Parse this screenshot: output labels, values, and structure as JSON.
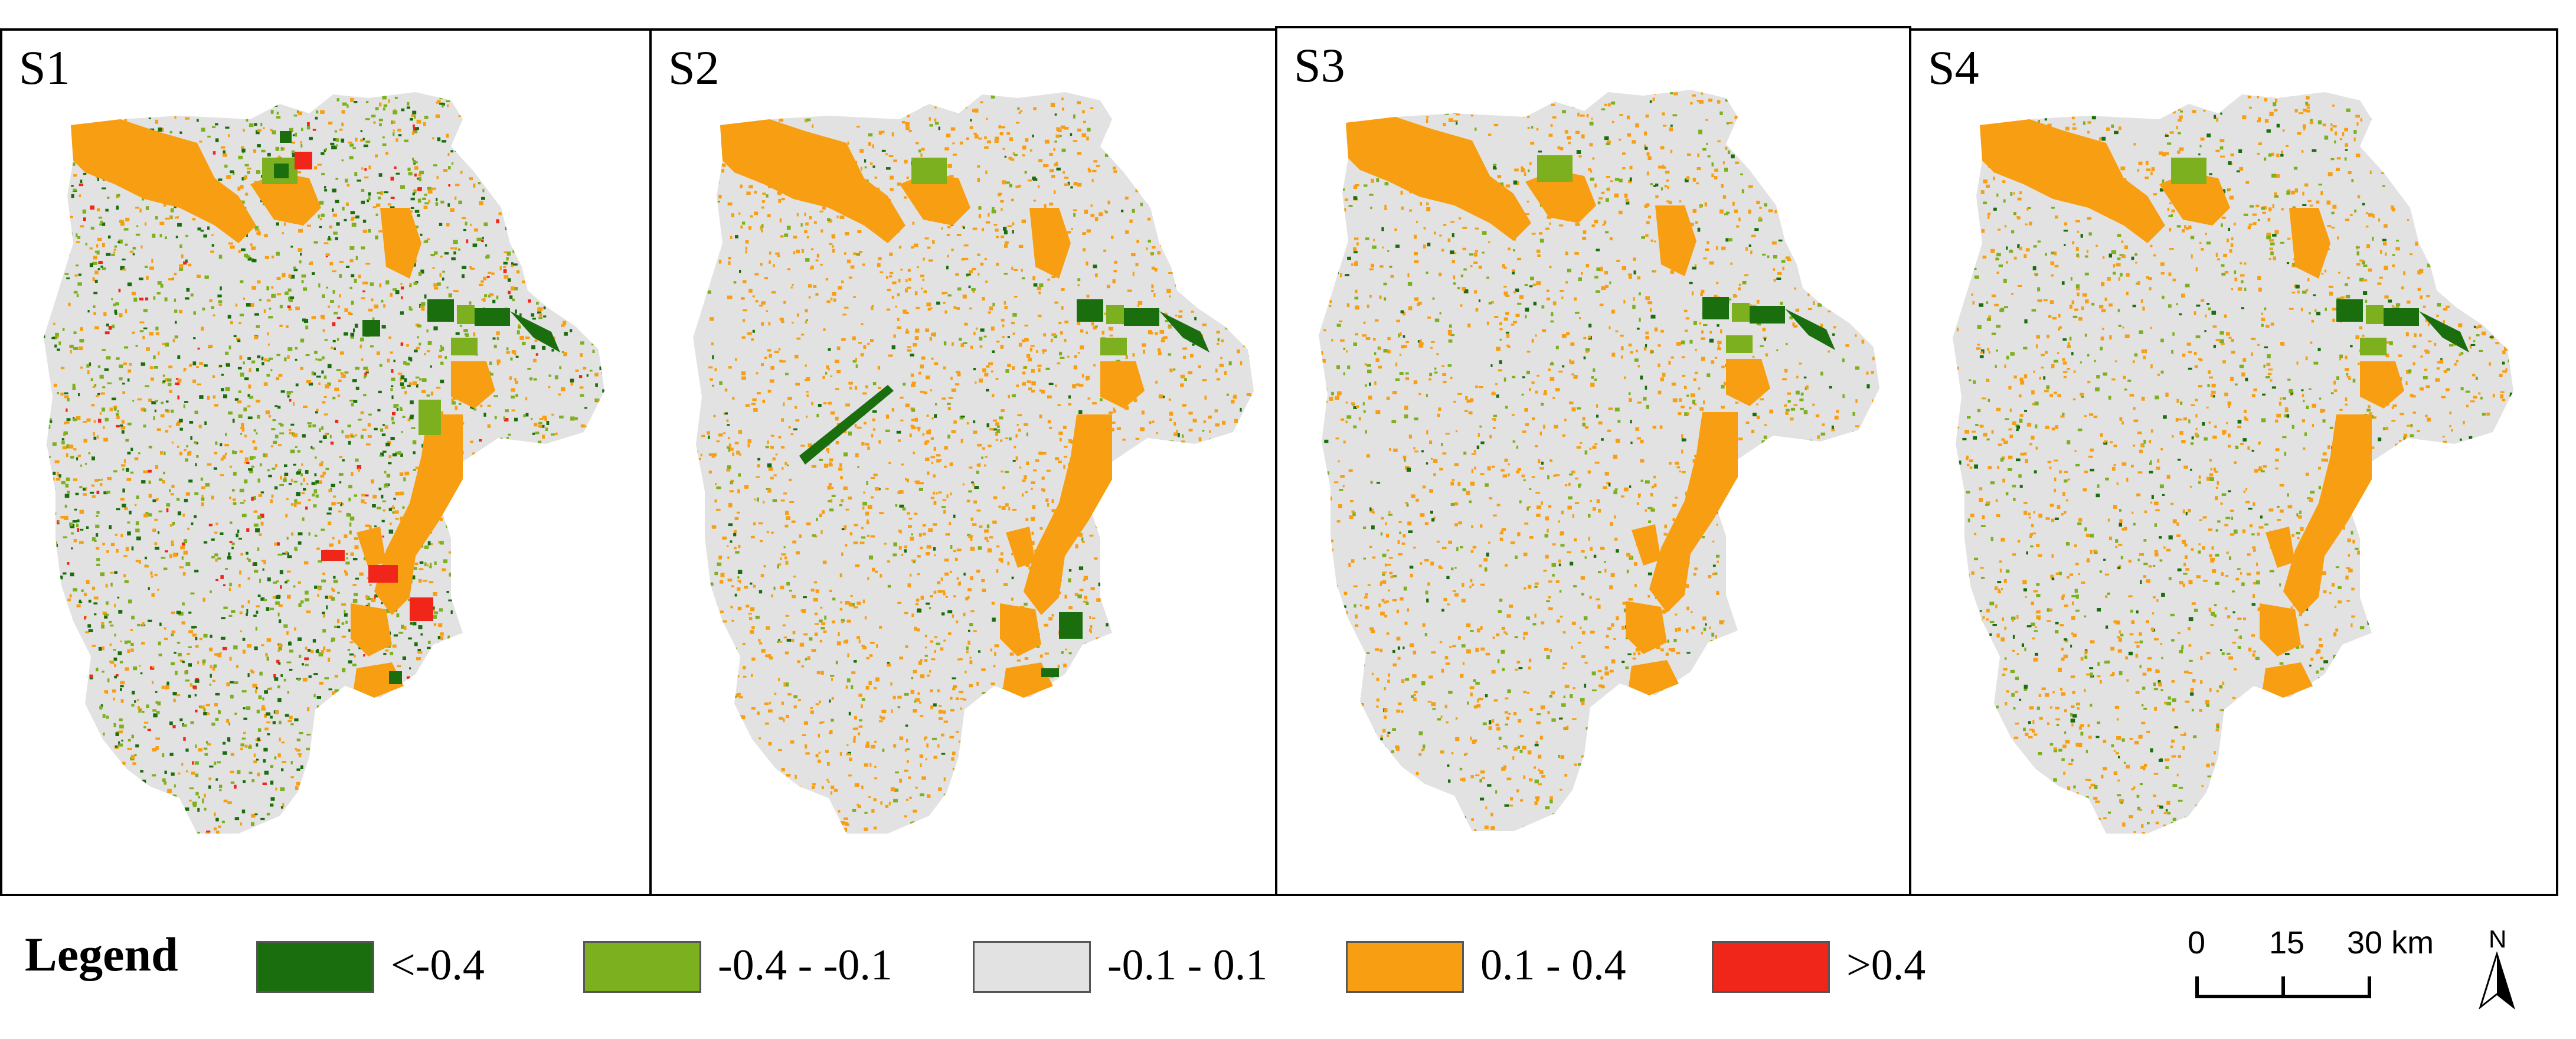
{
  "panels": [
    {
      "label": "S1"
    },
    {
      "label": "S2"
    },
    {
      "label": "S3"
    },
    {
      "label": "S4"
    }
  ],
  "legend": {
    "title": "Legend",
    "classes": [
      {
        "label": "<-0.4",
        "color": "#1a6e0e"
      },
      {
        "label": "-0.4 - -0.1",
        "color": "#7db01e"
      },
      {
        "label": "-0.1 - 0.1",
        "color": "#e2e2e2"
      },
      {
        "label": "0.1 - 0.4",
        "color": "#f89e12"
      },
      {
        "label": ">0.4",
        "color": "#f0261a"
      }
    ]
  },
  "scale_bar": {
    "labels": [
      "0",
      "15",
      "30 km"
    ]
  },
  "north_arrow": {
    "letter": "N",
    "icon": "north-arrow-icon"
  }
}
